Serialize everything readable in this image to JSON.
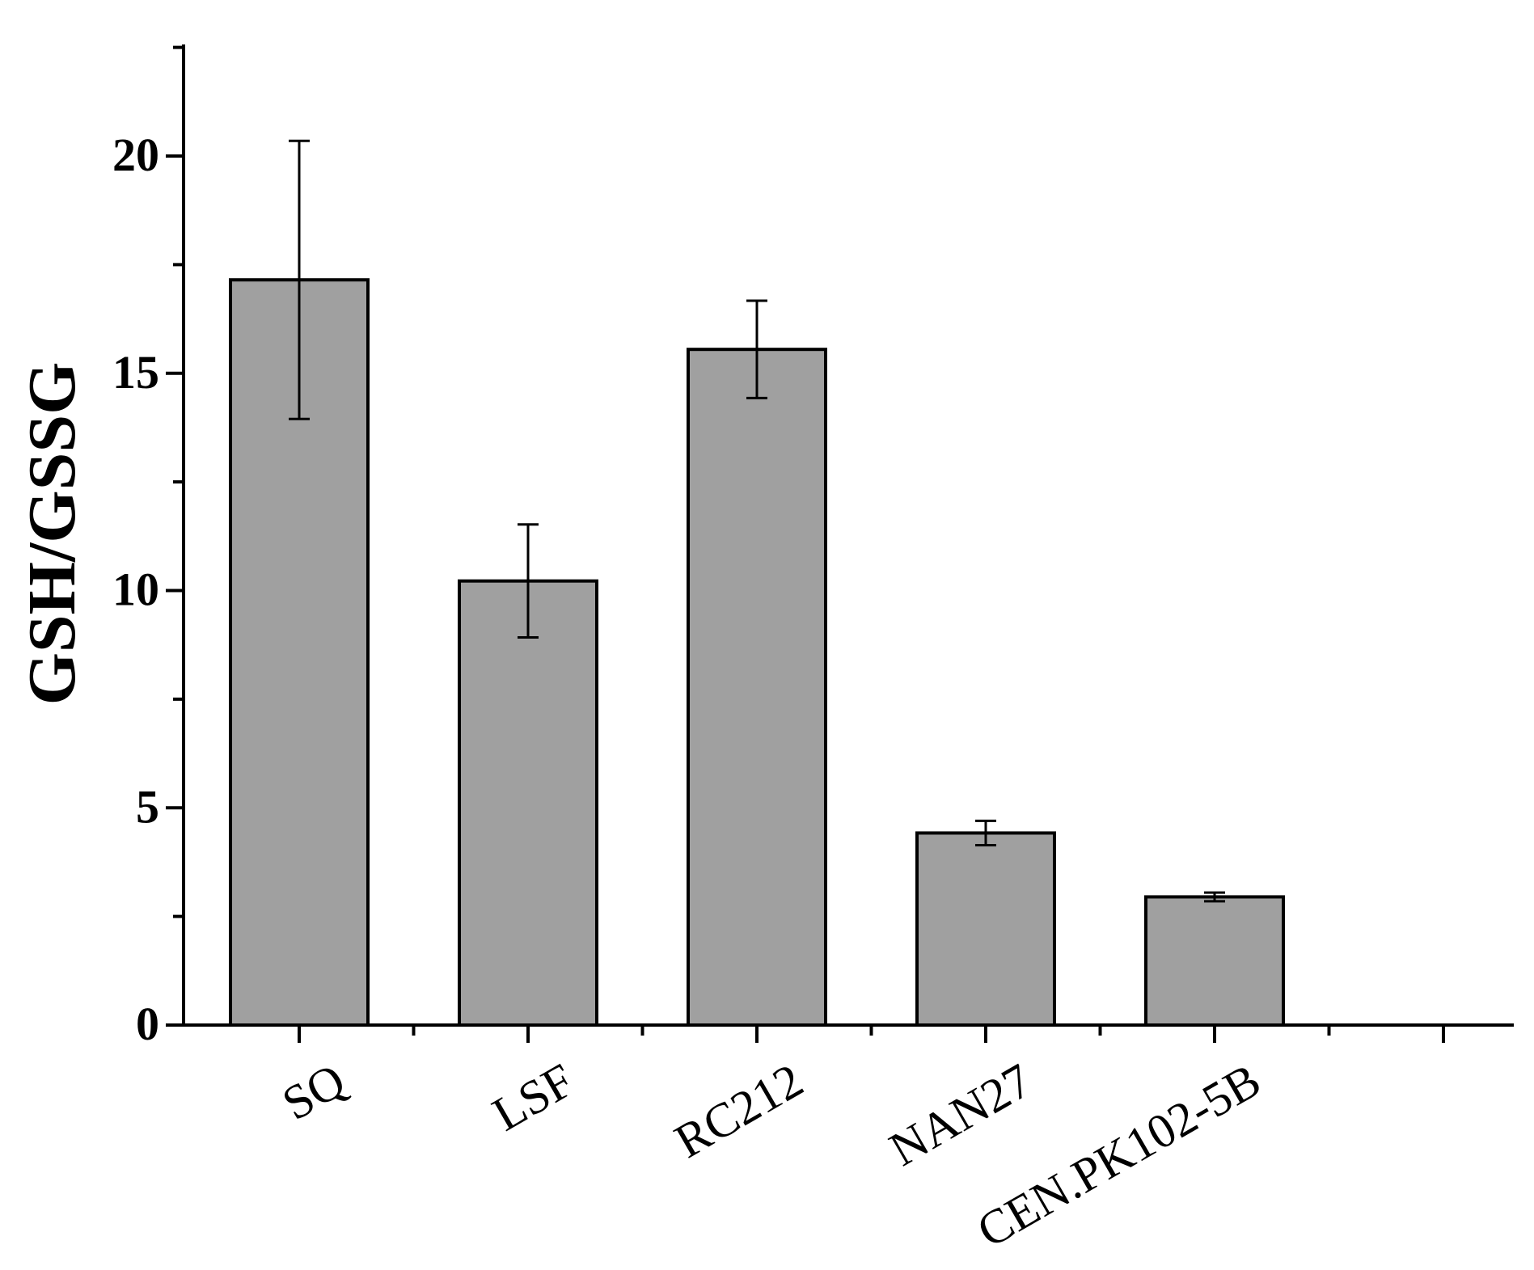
{
  "chart_data": {
    "type": "bar",
    "title": "",
    "xlabel": "",
    "ylabel": "GSH/GSSG",
    "categories": [
      "SQ",
      "LSF",
      "RC212",
      "NAN27",
      "CEN.PK102-5B"
    ],
    "values": [
      17.15,
      10.22,
      15.55,
      4.42,
      2.95
    ],
    "errors": [
      3.2,
      1.3,
      1.12,
      0.28,
      0.1
    ],
    "ylim": [
      0,
      22.5
    ],
    "yticks": [
      "0",
      "5",
      "10",
      "15",
      "20"
    ],
    "grid": false,
    "legend": "none",
    "colors": {
      "bar_fill": "#a0a0a0",
      "bar_stroke": "#000000",
      "axis": "#000000"
    }
  }
}
